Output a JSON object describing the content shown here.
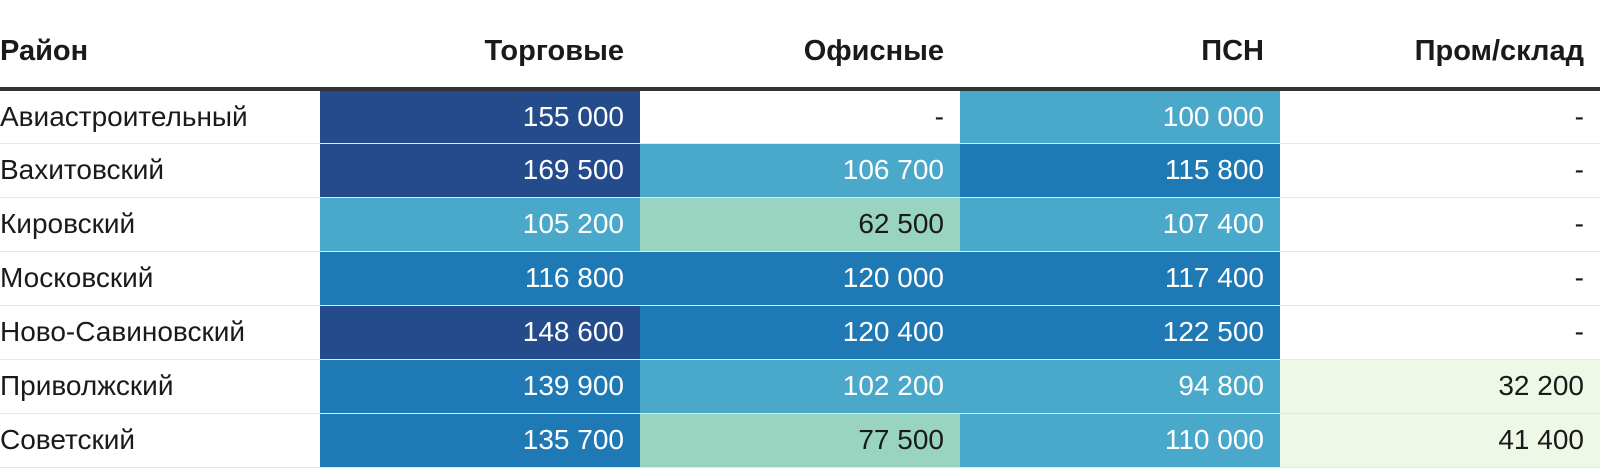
{
  "chart_data": {
    "type": "table",
    "columns": [
      "Район",
      "Торговые",
      "Офисные",
      "ПСН",
      "Пром/склад"
    ],
    "rows": [
      {
        "district": "Авиастроительный",
        "values": [
          155000,
          null,
          100000,
          null
        ],
        "labels": [
          "155 000",
          "-",
          "100 000",
          "-"
        ]
      },
      {
        "district": "Вахитовский",
        "values": [
          169500,
          106700,
          115800,
          null
        ],
        "labels": [
          "169 500",
          "106 700",
          "115 800",
          "-"
        ]
      },
      {
        "district": "Кировский",
        "values": [
          105200,
          62500,
          107400,
          null
        ],
        "labels": [
          "105 200",
          "62 500",
          "107 400",
          "-"
        ]
      },
      {
        "district": "Московский",
        "values": [
          116800,
          120000,
          117400,
          null
        ],
        "labels": [
          "116 800",
          "120 000",
          "117 400",
          "-"
        ]
      },
      {
        "district": "Ново-Савиновский",
        "values": [
          148600,
          120400,
          122500,
          null
        ],
        "labels": [
          "148 600",
          "120 400",
          "122 500",
          "-"
        ]
      },
      {
        "district": "Приволжский",
        "values": [
          139900,
          102200,
          94800,
          32200
        ],
        "labels": [
          "139 900",
          "102 200",
          "94 800",
          "32 200"
        ]
      },
      {
        "district": "Советский",
        "values": [
          135700,
          77500,
          110000,
          41400
        ],
        "labels": [
          "135 700",
          "77 500",
          "110 000",
          "41 400"
        ]
      }
    ],
    "color_scale": {
      "empty": "#ffffff",
      "bins": [
        {
          "min": 0,
          "max": 50000,
          "color": "#edf8e6",
          "text": "#1a1a1a"
        },
        {
          "min": 50000,
          "max": 90000,
          "color": "#98d4bf",
          "text": "#1a1a1a"
        },
        {
          "min": 90000,
          "max": 112000,
          "color": "#4aa8cb",
          "text": "#ffffff"
        },
        {
          "min": 112000,
          "max": 145000,
          "color": "#1e79b5",
          "text": "#ffffff"
        },
        {
          "min": 145000,
          "max": 1000000,
          "color": "#244b8c",
          "text": "#ffffff"
        }
      ]
    }
  }
}
